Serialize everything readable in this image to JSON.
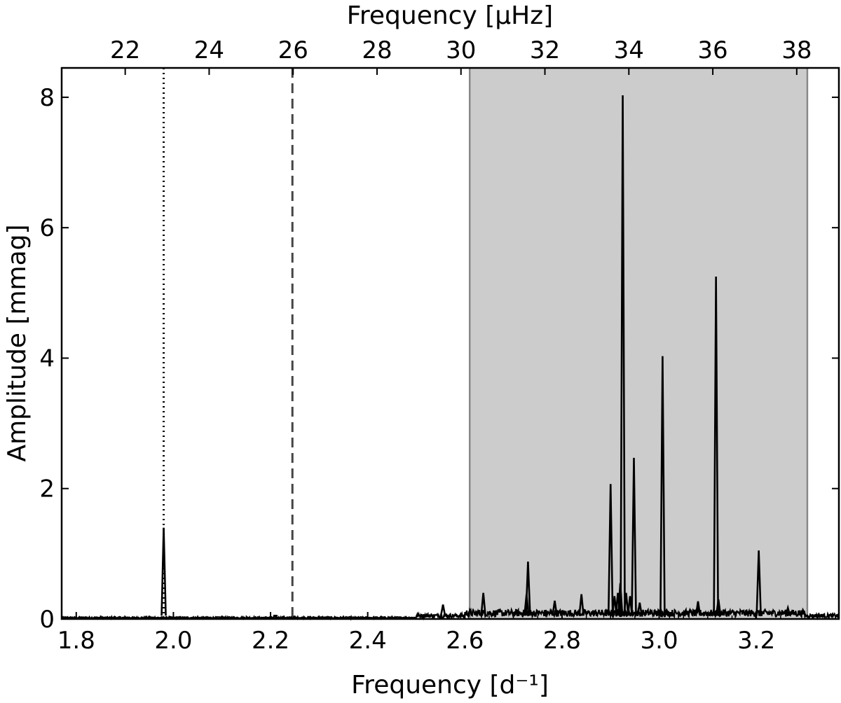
{
  "chart_data": {
    "type": "line",
    "xlabel": "Frequency [d⁻¹]",
    "xlabel_top": "Frequency [μHz]",
    "ylabel": "Amplitude [mmag]",
    "xlim": [
      1.77,
      3.37
    ],
    "ylim": [
      0,
      8.45
    ],
    "x_ticks": [
      1.8,
      2.0,
      2.2,
      2.4,
      2.6,
      2.8,
      3.0,
      3.2
    ],
    "x_tick_labels": [
      "1.8",
      "2.0",
      "2.2",
      "2.4",
      "2.6",
      "2.8",
      "3.0",
      "3.2"
    ],
    "y_ticks": [
      0,
      2,
      4,
      6,
      8
    ],
    "y_tick_labels": [
      "0",
      "2",
      "4",
      "6",
      "8"
    ],
    "top_ticks_uHz": [
      22,
      24,
      26,
      28,
      30,
      32,
      34,
      36,
      38
    ],
    "top_tick_labels": [
      "22",
      "24",
      "26",
      "28",
      "30",
      "32",
      "34",
      "36",
      "38"
    ],
    "shaded_region": {
      "x": [
        2.61,
        3.305
      ],
      "color": "#cccccc",
      "edge_color": "#888888"
    },
    "vlines": [
      {
        "x": 1.98,
        "style": "dotted",
        "color": "#000000"
      },
      {
        "x": 2.245,
        "style": "dashed",
        "color": "#444444"
      }
    ],
    "peaks": [
      {
        "x": 1.98,
        "y": 1.4
      },
      {
        "x": 2.21,
        "y": 0.05
      },
      {
        "x": 2.555,
        "y": 0.22
      },
      {
        "x": 2.638,
        "y": 0.4
      },
      {
        "x": 2.727,
        "y": 0.38
      },
      {
        "x": 2.73,
        "y": 0.88
      },
      {
        "x": 2.785,
        "y": 0.28
      },
      {
        "x": 2.84,
        "y": 0.38
      },
      {
        "x": 2.9,
        "y": 2.07
      },
      {
        "x": 2.908,
        "y": 0.35
      },
      {
        "x": 2.915,
        "y": 0.4
      },
      {
        "x": 2.92,
        "y": 0.55
      },
      {
        "x": 2.925,
        "y": 8.03
      },
      {
        "x": 2.932,
        "y": 0.4
      },
      {
        "x": 2.94,
        "y": 0.35
      },
      {
        "x": 2.948,
        "y": 2.47
      },
      {
        "x": 2.96,
        "y": 0.25
      },
      {
        "x": 3.003,
        "y": 0.15
      },
      {
        "x": 3.007,
        "y": 4.03
      },
      {
        "x": 3.08,
        "y": 0.27
      },
      {
        "x": 3.117,
        "y": 5.25
      },
      {
        "x": 3.122,
        "y": 0.3
      },
      {
        "x": 3.205,
        "y": 1.05
      },
      {
        "x": 3.265,
        "y": 0.17
      }
    ],
    "line_color": "#000000"
  }
}
